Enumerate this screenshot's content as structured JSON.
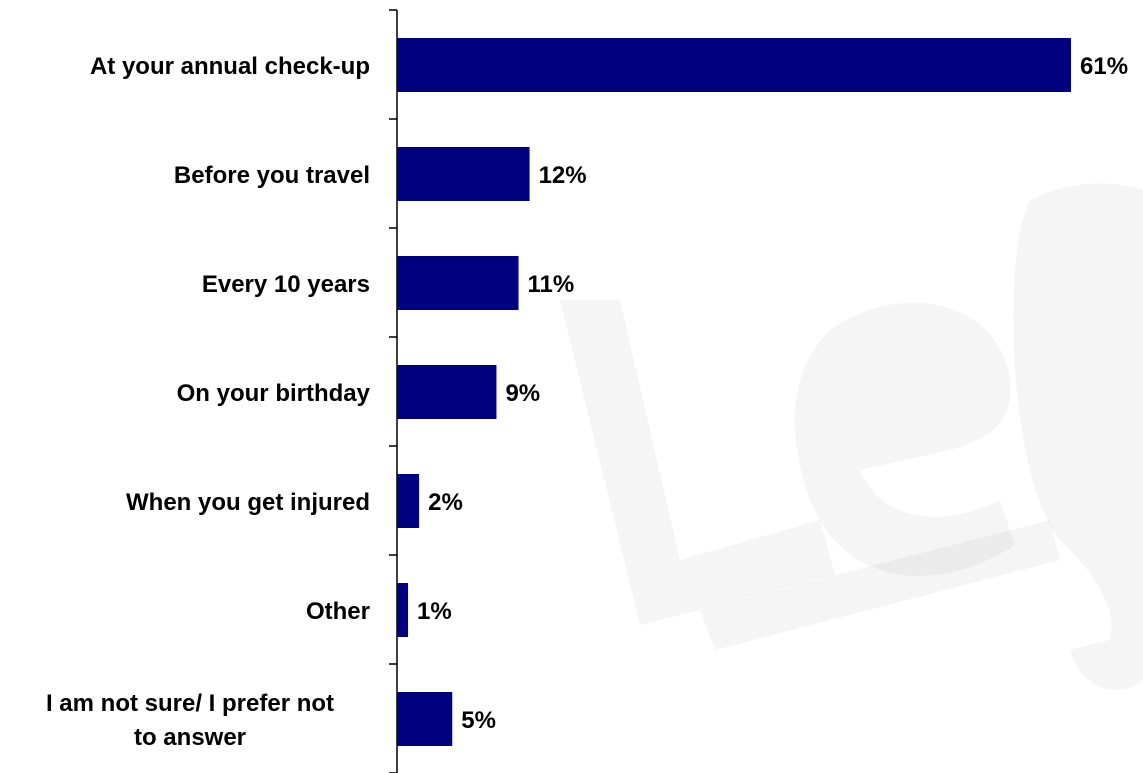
{
  "chart_data": {
    "type": "bar",
    "orientation": "horizontal",
    "categories": [
      "At your annual check-up",
      "Before you travel",
      "Every 10 years",
      "On your birthday",
      "When you get injured",
      "Other",
      "I am not sure/ I prefer not to answer"
    ],
    "category_lines": [
      [
        "At your annual check-up"
      ],
      [
        "Before you travel"
      ],
      [
        "Every 10 years"
      ],
      [
        "On your birthday"
      ],
      [
        "When you get injured"
      ],
      [
        "Other"
      ],
      [
        "I am not sure/ I prefer not",
        "to answer"
      ]
    ],
    "values": [
      61,
      12,
      11,
      9,
      2,
      1,
      5
    ],
    "value_labels": [
      "61%",
      "12%",
      "11%",
      "9%",
      "2%",
      "1%",
      "5%"
    ],
    "unit": "%",
    "xlim": [
      0,
      61
    ],
    "grid": false,
    "legend": "none",
    "title": "",
    "xlabel": "",
    "ylabel": "",
    "colors": {
      "bar": "#000080",
      "axis": "#000000",
      "text": "#000000"
    }
  }
}
